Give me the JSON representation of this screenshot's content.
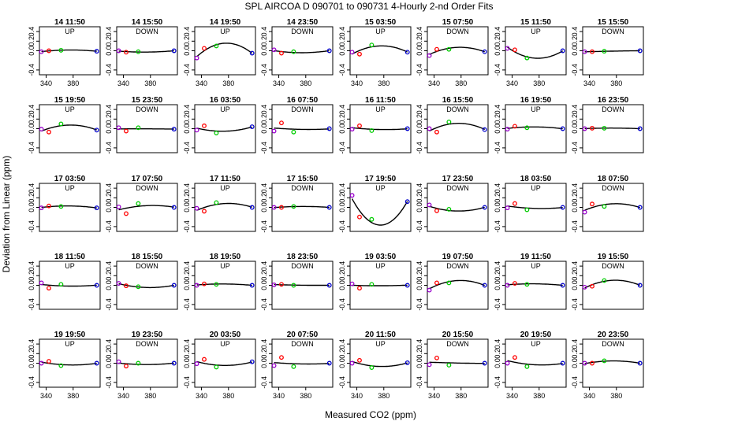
{
  "chart_data": {
    "type": "scatter",
    "title": "SPL   AIRCOA D   090701 to 090731   4-Hourly 2-nd Order Fits",
    "xlabel": "Measured CO2 (ppm)",
    "ylabel": "Deviation from Linear (ppm)",
    "xlim": [
      330,
      420
    ],
    "ylim": [
      -0.5,
      0.5
    ],
    "x_ticks": [
      "340",
      "380"
    ],
    "y_ticks": [
      "-0.4",
      "0.0",
      "0.2",
      "0.4"
    ],
    "y_tick_values": [
      -0.4,
      0.0,
      0.2,
      0.4
    ],
    "standards_x": [
      333,
      344,
      362,
      415
    ],
    "standard_colors": [
      "#9900cc",
      "#ff0000",
      "#00cc00",
      "#0000cc"
    ],
    "fit_color": "#000000",
    "panels": [
      {
        "title": "14 11:50",
        "mode": "UP",
        "points": [
          -0.02,
          0.0,
          0.01,
          -0.01
        ]
      },
      {
        "title": "14 15:50",
        "mode": "DOWN",
        "points": [
          0.0,
          -0.03,
          -0.02,
          0.0
        ]
      },
      {
        "title": "14 19:50",
        "mode": "UP",
        "points": [
          -0.15,
          0.05,
          0.1,
          -0.05
        ]
      },
      {
        "title": "14 23:50",
        "mode": "DOWN",
        "points": [
          0.02,
          -0.05,
          -0.02,
          0.0
        ]
      },
      {
        "title": "15 03:50",
        "mode": "UP",
        "points": [
          -0.03,
          -0.07,
          0.12,
          -0.03
        ]
      },
      {
        "title": "15 07:50",
        "mode": "DOWN",
        "points": [
          -0.1,
          0.03,
          0.03,
          -0.02
        ]
      },
      {
        "title": "15 11:50",
        "mode": "UP",
        "points": [
          0.05,
          0.02,
          -0.15,
          0.0
        ]
      },
      {
        "title": "15 15:50",
        "mode": "DOWN",
        "points": [
          -0.02,
          -0.02,
          -0.01,
          0.0
        ]
      },
      {
        "title": "15 19:50",
        "mode": "UP",
        "points": [
          -0.01,
          -0.07,
          0.1,
          -0.03
        ]
      },
      {
        "title": "15 23:50",
        "mode": "DOWN",
        "points": [
          0.02,
          -0.05,
          0.02,
          -0.01
        ]
      },
      {
        "title": "16 03:50",
        "mode": "UP",
        "points": [
          -0.03,
          0.06,
          -0.09,
          0.04
        ]
      },
      {
        "title": "16 07:50",
        "mode": "DOWN",
        "points": [
          -0.05,
          0.12,
          -0.07,
          0.0
        ]
      },
      {
        "title": "16 11:50",
        "mode": "UP",
        "points": [
          -0.01,
          0.06,
          -0.04,
          0.0
        ]
      },
      {
        "title": "16 15:50",
        "mode": "DOWN",
        "points": [
          0.0,
          -0.07,
          0.14,
          -0.02
        ]
      },
      {
        "title": "16 19:50",
        "mode": "UP",
        "points": [
          -0.01,
          0.05,
          0.02,
          0.0
        ]
      },
      {
        "title": "16 23:50",
        "mode": "DOWN",
        "points": [
          0.0,
          0.01,
          0.01,
          0.0
        ]
      },
      {
        "title": "17 03:50",
        "mode": "UP",
        "points": [
          -0.01,
          0.03,
          0.02,
          -0.01
        ]
      },
      {
        "title": "17 07:50",
        "mode": "DOWN",
        "points": [
          0.01,
          -0.13,
          0.08,
          0.0
        ]
      },
      {
        "title": "17 11:50",
        "mode": "UP",
        "points": [
          -0.02,
          -0.08,
          0.1,
          0.0
        ]
      },
      {
        "title": "17 15:50",
        "mode": "DOWN",
        "points": [
          0.0,
          0.0,
          0.02,
          0.0
        ]
      },
      {
        "title": "17 19:50",
        "mode": "UP",
        "points": [
          0.25,
          -0.2,
          -0.25,
          0.12
        ]
      },
      {
        "title": "17 23:50",
        "mode": "DOWN",
        "points": [
          0.05,
          -0.07,
          -0.04,
          0.0
        ]
      },
      {
        "title": "18 03:50",
        "mode": "UP",
        "points": [
          -0.01,
          0.08,
          -0.05,
          0.0
        ]
      },
      {
        "title": "18 07:50",
        "mode": "DOWN",
        "points": [
          -0.1,
          0.07,
          0.02,
          0.0
        ]
      },
      {
        "title": "18 11:50",
        "mode": "UP",
        "points": [
          0.05,
          -0.06,
          0.02,
          0.0
        ]
      },
      {
        "title": "18 15:50",
        "mode": "DOWN",
        "points": [
          0.04,
          -0.01,
          -0.03,
          0.0
        ]
      },
      {
        "title": "18 19:50",
        "mode": "UP",
        "points": [
          0.0,
          0.03,
          0.02,
          0.0
        ]
      },
      {
        "title": "18 23:50",
        "mode": "DOWN",
        "points": [
          0.01,
          0.02,
          0.0,
          0.0
        ]
      },
      {
        "title": "19 03:50",
        "mode": "UP",
        "points": [
          0.03,
          -0.06,
          0.02,
          0.0
        ]
      },
      {
        "title": "19 07:50",
        "mode": "DOWN",
        "points": [
          -0.1,
          0.05,
          0.05,
          0.0
        ]
      },
      {
        "title": "19 11:50",
        "mode": "UP",
        "points": [
          0.0,
          0.04,
          0.02,
          0.0
        ]
      },
      {
        "title": "19 15:50",
        "mode": "DOWN",
        "points": [
          -0.04,
          -0.02,
          0.1,
          0.0
        ]
      },
      {
        "title": "19 19:50",
        "mode": "UP",
        "points": [
          0.0,
          0.04,
          -0.05,
          0.0
        ]
      },
      {
        "title": "19 23:50",
        "mode": "DOWN",
        "points": [
          0.03,
          -0.06,
          0.0,
          0.0
        ]
      },
      {
        "title": "20 03:50",
        "mode": "UP",
        "points": [
          -0.01,
          0.08,
          -0.08,
          0.03
        ]
      },
      {
        "title": "20 07:50",
        "mode": "DOWN",
        "points": [
          -0.05,
          0.12,
          -0.07,
          0.0
        ]
      },
      {
        "title": "20 11:50",
        "mode": "UP",
        "points": [
          0.0,
          0.06,
          -0.09,
          0.01
        ]
      },
      {
        "title": "20 15:50",
        "mode": "DOWN",
        "points": [
          -0.03,
          0.11,
          -0.04,
          0.0
        ]
      },
      {
        "title": "20 19:50",
        "mode": "UP",
        "points": [
          0.0,
          0.12,
          -0.07,
          0.0
        ]
      },
      {
        "title": "20 23:50",
        "mode": "DOWN",
        "points": [
          0.0,
          0.0,
          0.05,
          0.0
        ]
      }
    ]
  }
}
